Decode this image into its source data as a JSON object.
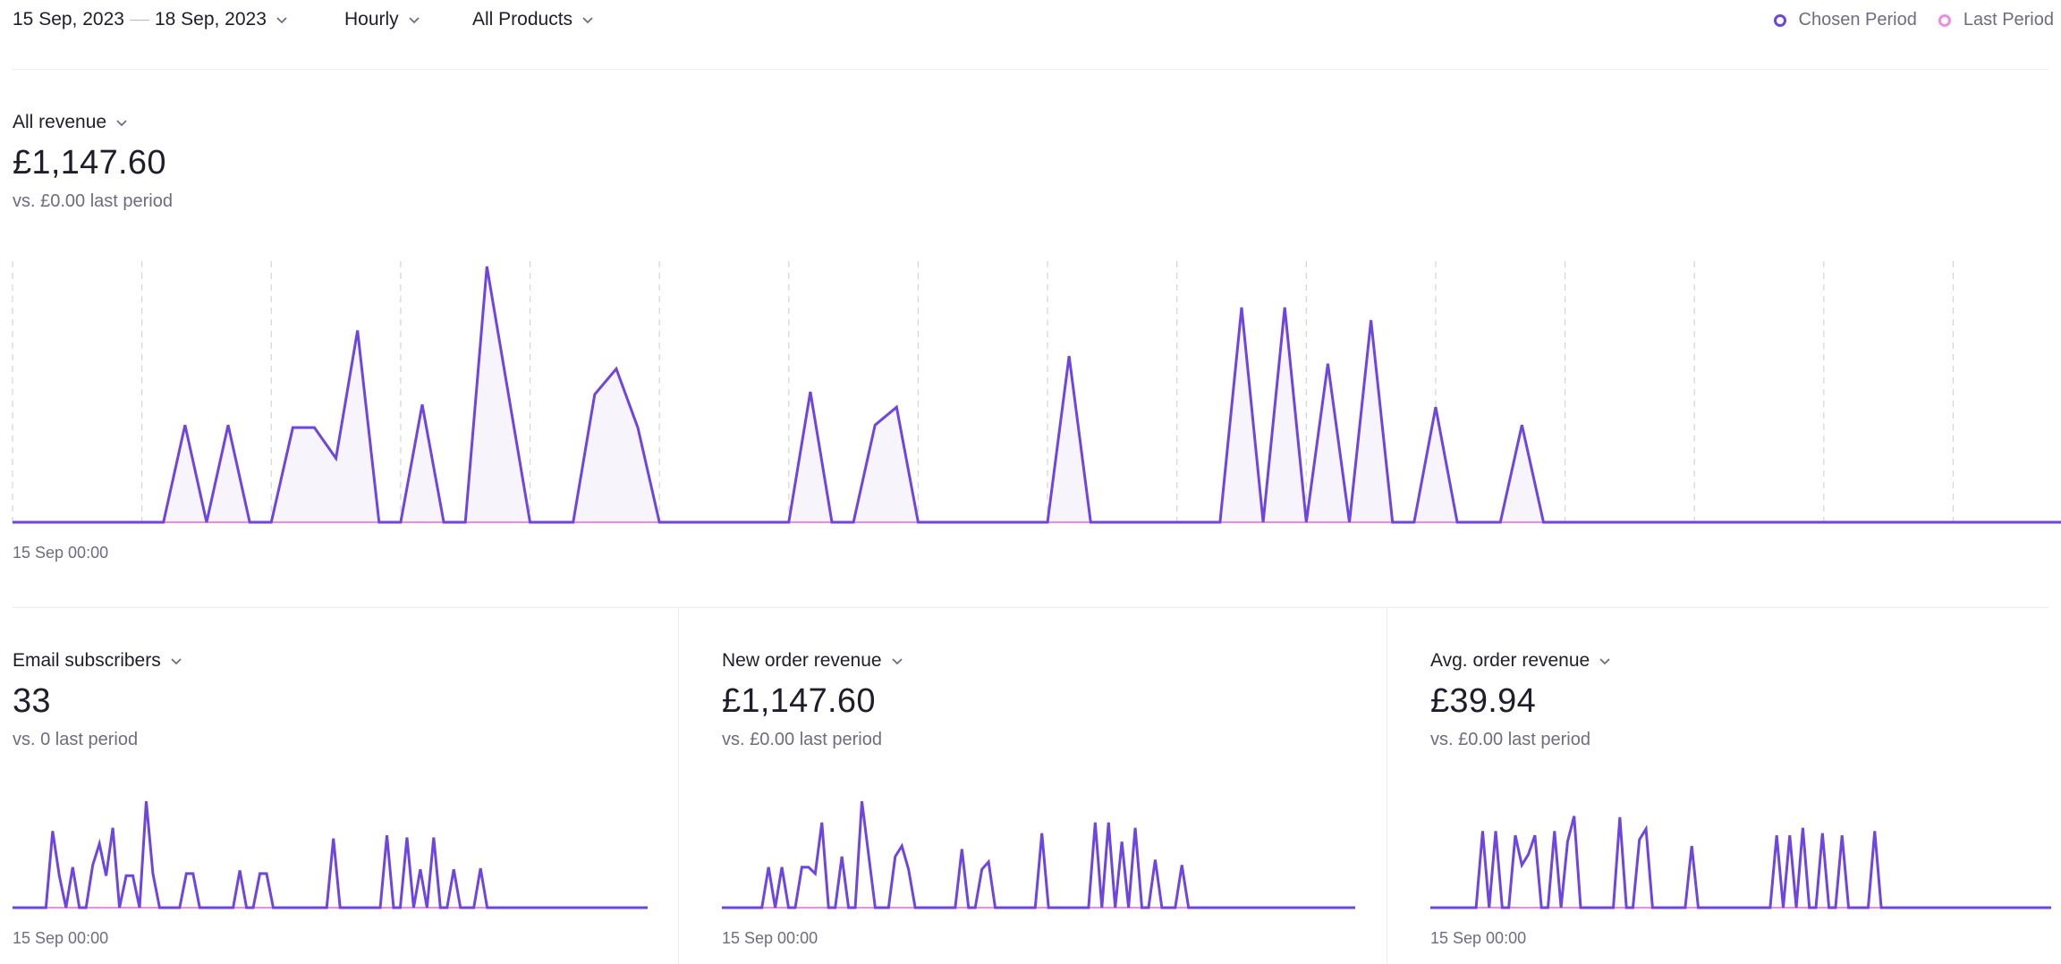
{
  "filters": {
    "date_start": "15 Sep, 2023",
    "date_end": "18 Sep, 2023",
    "interval": "Hourly",
    "products": "All Products"
  },
  "legend": {
    "chosen": "Chosen Period",
    "last": "Last Period"
  },
  "colors": {
    "chosen": "#6e45e2",
    "last": "#f08ae6",
    "fill": "#f7f4fb",
    "grid": "#d4d2dc"
  },
  "main": {
    "label": "All revenue",
    "value": "£1,147.60",
    "compare": "vs. £0.00 last period",
    "x_start_label": "15 Sep 00:00"
  },
  "cards": [
    {
      "label": "Email subscribers",
      "value": "33",
      "compare": "vs. 0 last period",
      "x_start_label": "15 Sep 00:00"
    },
    {
      "label": "New order revenue",
      "value": "£1,147.60",
      "compare": "vs. £0.00 last period",
      "x_start_label": "15 Sep 00:00"
    },
    {
      "label": "Avg. order revenue",
      "value": "£39.94",
      "compare": "vs. £0.00 last period",
      "x_start_label": "15 Sep 00:00"
    }
  ],
  "chart_data": [
    {
      "type": "area",
      "title": "All revenue",
      "x_start": "15 Sep 00:00",
      "x_unit": "hour",
      "hours": 96,
      "series": [
        {
          "name": "Chosen Period",
          "values": [
            0,
            0,
            0,
            0,
            0,
            0,
            0,
            0,
            0.38,
            0,
            0.38,
            0,
            0,
            0.37,
            0.37,
            0.25,
            0.75,
            0,
            0,
            0.46,
            0,
            0,
            1,
            0.5,
            0,
            0,
            0,
            0.5,
            0.6,
            0.37,
            0,
            0,
            0,
            0,
            0,
            0,
            0,
            0.51,
            0,
            0,
            0.38,
            0.45,
            0,
            0,
            0,
            0,
            0,
            0,
            0,
            0.65,
            0,
            0,
            0,
            0,
            0,
            0,
            0,
            0.84,
            0,
            0.84,
            0,
            0.62,
            0,
            0.79,
            0,
            0,
            0.45,
            0,
            0,
            0,
            0.38,
            0,
            0,
            0,
            0,
            0,
            0,
            0,
            0,
            0,
            0,
            0,
            0,
            0,
            0,
            0,
            0,
            0,
            0,
            0,
            0,
            0,
            0,
            0,
            0,
            0
          ]
        },
        {
          "name": "Last Period",
          "values": []
        }
      ]
    },
    {
      "type": "line",
      "title": "Email subscribers",
      "x_start": "15 Sep 00:00",
      "hours": 96,
      "series": [
        {
          "name": "Chosen Period",
          "values": [
            0,
            0,
            0,
            0,
            0,
            0,
            0.72,
            0.3,
            0,
            0.38,
            0,
            0,
            0.4,
            0.6,
            0.3,
            0.75,
            0,
            0.3,
            0.3,
            0,
            1,
            0.32,
            0,
            0,
            0,
            0,
            0.32,
            0.32,
            0,
            0,
            0,
            0,
            0,
            0,
            0.35,
            0,
            0,
            0.32,
            0.32,
            0,
            0,
            0,
            0,
            0,
            0,
            0,
            0,
            0,
            0.65,
            0,
            0,
            0,
            0,
            0,
            0,
            0,
            0.68,
            0,
            0,
            0.66,
            0,
            0.36,
            0,
            0.66,
            0,
            0,
            0.36,
            0,
            0,
            0,
            0.37,
            0,
            0,
            0,
            0,
            0,
            0,
            0,
            0,
            0,
            0,
            0,
            0,
            0,
            0,
            0,
            0,
            0,
            0,
            0,
            0,
            0,
            0,
            0,
            0,
            0
          ]
        },
        {
          "name": "Last Period",
          "values": []
        }
      ]
    },
    {
      "type": "line",
      "title": "New order revenue",
      "x_start": "15 Sep 00:00",
      "hours": 96,
      "series": [
        {
          "name": "Chosen Period",
          "values": [
            0,
            0,
            0,
            0,
            0,
            0,
            0,
            0.38,
            0,
            0.38,
            0,
            0,
            0.38,
            0.38,
            0.32,
            0.8,
            0,
            0,
            0.48,
            0,
            0,
            1,
            0.5,
            0,
            0,
            0,
            0.48,
            0.58,
            0.36,
            0,
            0,
            0,
            0,
            0,
            0,
            0,
            0.55,
            0,
            0,
            0.36,
            0.43,
            0,
            0,
            0,
            0,
            0,
            0,
            0,
            0.7,
            0,
            0,
            0,
            0,
            0,
            0,
            0,
            0.8,
            0,
            0.8,
            0,
            0.62,
            0,
            0.75,
            0,
            0,
            0.45,
            0,
            0,
            0,
            0.4,
            0,
            0,
            0,
            0,
            0,
            0,
            0,
            0,
            0,
            0,
            0,
            0,
            0,
            0,
            0,
            0,
            0,
            0,
            0,
            0,
            0,
            0,
            0,
            0,
            0,
            0
          ]
        },
        {
          "name": "Last Period",
          "values": []
        }
      ]
    },
    {
      "type": "line",
      "title": "Avg. order revenue",
      "x_start": "15 Sep 00:00",
      "hours": 96,
      "series": [
        {
          "name": "Chosen Period",
          "values": [
            0,
            0,
            0,
            0,
            0,
            0,
            0,
            0,
            0.72,
            0,
            0.72,
            0,
            0,
            0.68,
            0.4,
            0.5,
            0.68,
            0,
            0,
            0.72,
            0,
            0.62,
            0.86,
            0,
            0,
            0,
            0,
            0,
            0,
            0.85,
            0,
            0,
            0.64,
            0.74,
            0,
            0,
            0,
            0,
            0,
            0,
            0.58,
            0,
            0,
            0,
            0,
            0,
            0,
            0,
            0,
            0,
            0,
            0,
            0,
            0.68,
            0,
            0.68,
            0,
            0.75,
            0,
            0,
            0.7,
            0,
            0,
            0.68,
            0,
            0,
            0,
            0,
            0.72,
            0,
            0,
            0,
            0,
            0,
            0,
            0,
            0,
            0,
            0,
            0,
            0,
            0,
            0,
            0,
            0,
            0,
            0,
            0,
            0,
            0,
            0,
            0,
            0,
            0,
            0,
            0
          ]
        },
        {
          "name": "Last Period",
          "values": []
        }
      ]
    }
  ]
}
